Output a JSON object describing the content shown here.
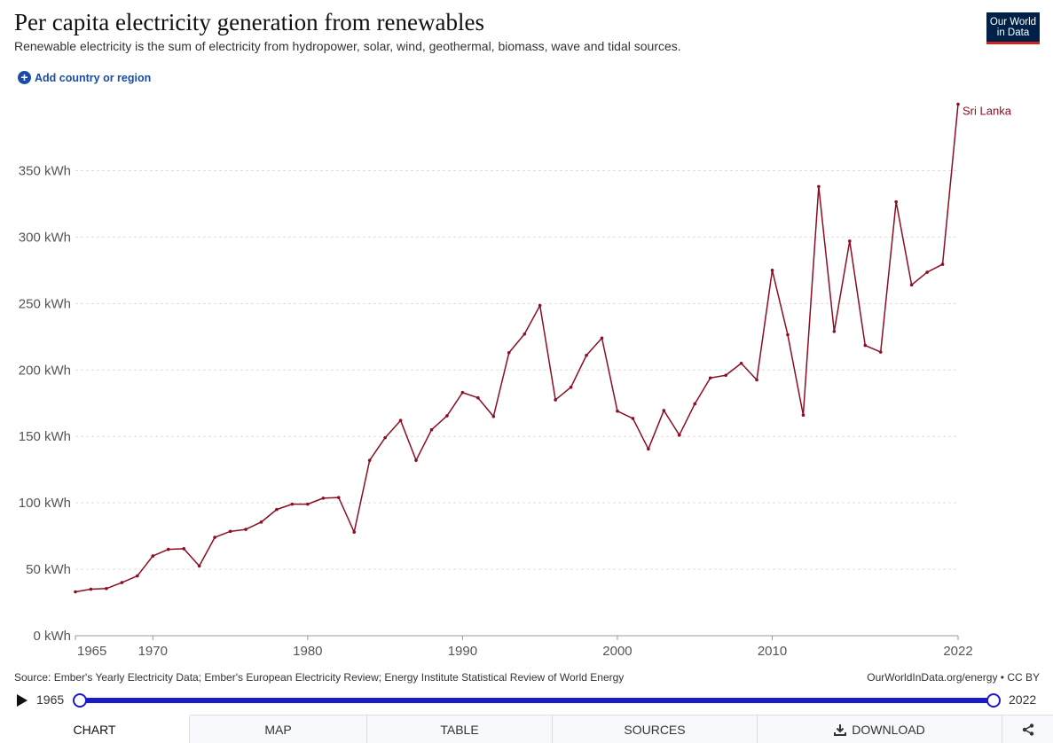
{
  "header": {
    "title": "Per capita electricity generation from renewables",
    "subtitle": "Renewable electricity is the sum of electricity from hydropower, solar, wind, geothermal, biomass, wave and tidal sources.",
    "logo_line1": "Our World",
    "logo_line2": "in Data"
  },
  "controls": {
    "add_country_label": "Add country or region"
  },
  "footer": {
    "source": "Source: Ember's Yearly Electricity Data; Ember's European Electricity Review; Energy Institute Statistical Review of World Energy",
    "credit": "OurWorldInData.org/energy • CC BY"
  },
  "timeline": {
    "start_year": "1965",
    "end_year": "2022"
  },
  "tabs": {
    "chart": "CHART",
    "map": "MAP",
    "table": "TABLE",
    "sources": "SOURCES",
    "download": "DOWNLOAD"
  },
  "colors": {
    "series": "#8b0e22",
    "accent": "#1a1ac8",
    "link": "#1a4ca5",
    "logo_bg": "#002147",
    "logo_bar": "#ce261e"
  },
  "chart_data": {
    "type": "line",
    "title": "Per capita electricity generation from renewables",
    "xlabel": "",
    "ylabel": "",
    "xlim": [
      1965,
      2022
    ],
    "ylim": [
      0,
      400
    ],
    "grid": "horizontal-dashed",
    "y_ticks": [
      0,
      50,
      100,
      150,
      200,
      250,
      300,
      350
    ],
    "y_tick_labels": [
      "0 kWh",
      "50 kWh",
      "100 kWh",
      "150 kWh",
      "200 kWh",
      "250 kWh",
      "300 kWh",
      "350 kWh"
    ],
    "x_ticks": [
      1965,
      1970,
      1980,
      1990,
      2000,
      2010,
      2022
    ],
    "x_tick_labels": [
      "1965",
      "1970",
      "1980",
      "1990",
      "2000",
      "2010",
      "2022"
    ],
    "series": [
      {
        "name": "Sri Lanka",
        "x": [
          1965,
          1966,
          1967,
          1968,
          1969,
          1970,
          1971,
          1972,
          1973,
          1974,
          1975,
          1976,
          1977,
          1978,
          1979,
          1980,
          1981,
          1982,
          1983,
          1984,
          1985,
          1986,
          1987,
          1988,
          1989,
          1990,
          1991,
          1992,
          1993,
          1994,
          1995,
          1996,
          1997,
          1998,
          1999,
          2000,
          2001,
          2002,
          2003,
          2004,
          2005,
          2006,
          2007,
          2008,
          2009,
          2010,
          2011,
          2012,
          2013,
          2014,
          2015,
          2016,
          2017,
          2018,
          2019,
          2020,
          2021,
          2022
        ],
        "y": [
          33,
          35,
          35.5,
          40,
          45,
          60,
          65,
          65.5,
          52.5,
          74,
          78.5,
          80,
          85.5,
          95,
          99,
          99,
          103.5,
          104,
          78,
          132,
          149,
          162,
          132,
          155,
          165.5,
          183,
          179,
          165,
          213,
          227,
          248.5,
          177.5,
          187,
          211,
          224,
          169,
          163.5,
          140.5,
          169.5,
          151,
          174.5,
          194,
          196,
          205,
          192.5,
          275,
          226.5,
          166,
          338,
          229,
          297,
          218.5,
          213.5,
          326.5,
          264,
          273.5,
          279.5,
          400
        ]
      }
    ]
  }
}
